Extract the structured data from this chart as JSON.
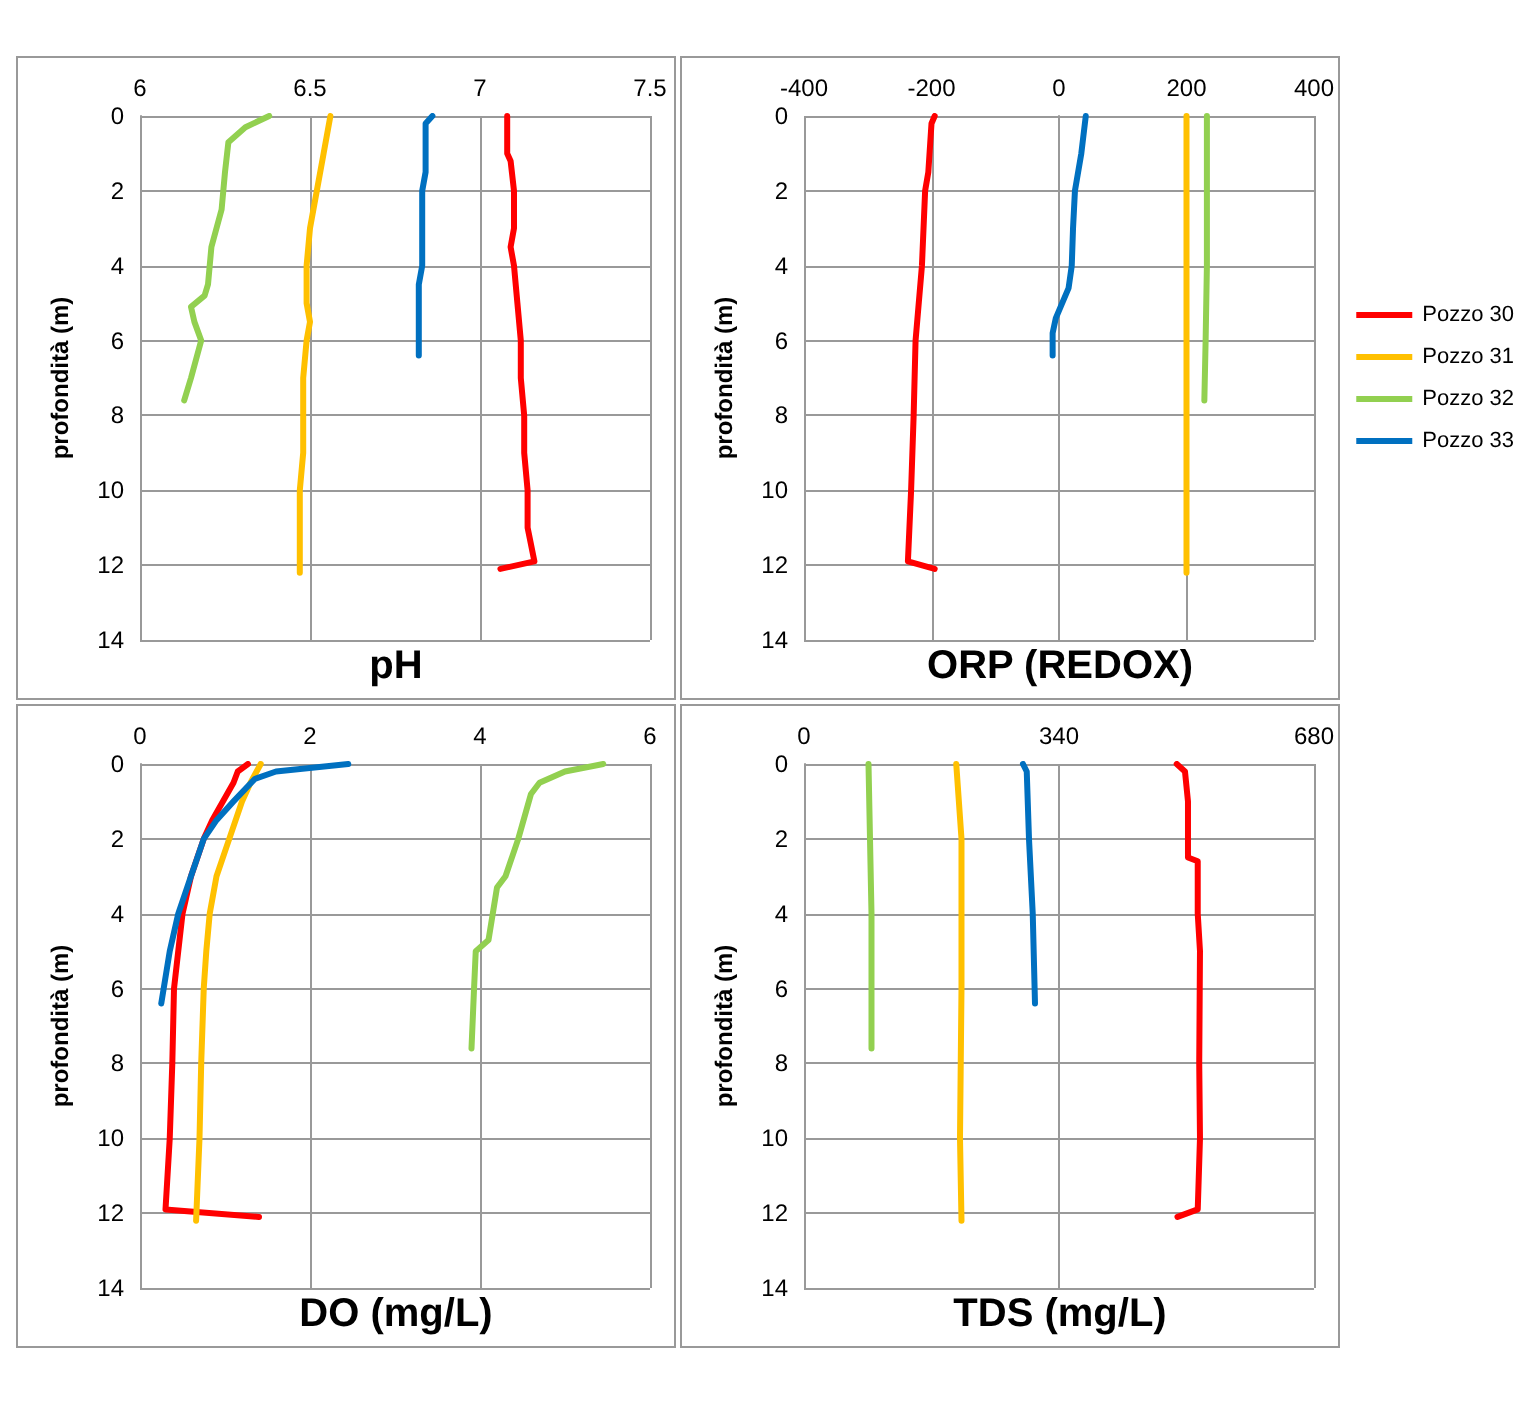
{
  "chart_data": [
    {
      "type": "line",
      "xlabel": "pH",
      "ylabel": "profondità (m)",
      "xlim": [
        6,
        7.5
      ],
      "xticks": [
        6,
        6.5,
        7,
        7.5
      ],
      "ylim": [
        14,
        0
      ],
      "yticks": [
        0,
        2,
        4,
        6,
        8,
        10,
        12,
        14
      ],
      "grid": true,
      "marker": "none",
      "series": [
        {
          "color": "#ff0000",
          "x": [
            7.08,
            7.08,
            7.09,
            7.1,
            7.1,
            7.09,
            7.1,
            7.11,
            7.12,
            7.12,
            7.13,
            7.13,
            7.14,
            7.14,
            7.16,
            7.06
          ],
          "values": [
            0,
            1,
            1.2,
            2,
            3,
            3.5,
            4,
            5,
            6,
            7,
            8,
            9,
            10,
            11,
            11.9,
            12.1
          ]
        },
        {
          "color": "#ffc000",
          "x": [
            6.56,
            6.54,
            6.52,
            6.5,
            6.49,
            6.49,
            6.5,
            6.49,
            6.48,
            6.48,
            6.48,
            6.47,
            6.47,
            6.47
          ],
          "values": [
            0,
            1,
            2,
            3,
            4,
            5,
            5.5,
            6,
            7,
            8,
            9,
            10,
            11,
            12.2
          ]
        },
        {
          "color": "#92d050",
          "x": [
            6.38,
            6.31,
            6.26,
            6.25,
            6.24,
            6.21,
            6.2,
            6.19,
            6.15,
            6.16,
            6.18,
            6.15,
            6.13
          ],
          "values": [
            0,
            0.3,
            0.7,
            1.5,
            2.5,
            3.5,
            4.5,
            4.8,
            5.1,
            5.5,
            6,
            7,
            7.6
          ]
        },
        {
          "color": "#0070c0",
          "x": [
            6.86,
            6.84,
            6.84,
            6.83,
            6.83,
            6.82,
            6.82
          ],
          "values": [
            0,
            0.2,
            1.5,
            2,
            4,
            4.5,
            6.4
          ]
        }
      ]
    },
    {
      "type": "line",
      "xlabel": "ORP (REDOX)",
      "ylabel": "profondità (m)",
      "xlim": [
        -400,
        400
      ],
      "xticks": [
        -400,
        -200,
        0,
        200,
        400
      ],
      "ylim": [
        14,
        0
      ],
      "yticks": [
        0,
        2,
        4,
        6,
        8,
        10,
        12,
        14
      ],
      "grid": true,
      "marker": "none",
      "legend": "right",
      "series": [
        {
          "name": "Pozzo 30",
          "color": "#ff0000",
          "x": [
            -195,
            -200,
            -205,
            -210,
            -215,
            -225,
            -228,
            -232,
            -237,
            -195
          ],
          "values": [
            0,
            0.2,
            1.5,
            2,
            4,
            6,
            8,
            10,
            11.9,
            12.1
          ]
        },
        {
          "name": "Pozzo 31",
          "color": "#ffc000",
          "x": [
            200,
            200
          ],
          "values": [
            0,
            12.2
          ]
        },
        {
          "name": "Pozzo 32",
          "color": "#92d050",
          "x": [
            232,
            232,
            230,
            228
          ],
          "values": [
            0,
            4,
            6,
            7.6
          ]
        },
        {
          "name": "Pozzo 33",
          "color": "#0070c0",
          "x": [
            42,
            35,
            25,
            22,
            20,
            15,
            5,
            -5,
            -10,
            -10
          ],
          "values": [
            0,
            1,
            2,
            3,
            4,
            4.6,
            5,
            5.4,
            5.8,
            6.4
          ]
        }
      ]
    },
    {
      "type": "line",
      "xlabel": "DO (mg/L)",
      "ylabel": "profondità (m)",
      "xlim": [
        0,
        6
      ],
      "xticks": [
        0,
        2,
        4,
        6
      ],
      "ylim": [
        14,
        0
      ],
      "yticks": [
        0,
        2,
        4,
        6,
        8,
        10,
        12,
        14
      ],
      "grid": true,
      "marker": "none",
      "series": [
        {
          "color": "#ff0000",
          "x": [
            1.27,
            1.15,
            1.1,
            0.95,
            0.85,
            0.75,
            0.6,
            0.5,
            0.45,
            0.4,
            0.38,
            0.35,
            0.3,
            1.4
          ],
          "values": [
            0,
            0.2,
            0.5,
            1.1,
            1.5,
            2,
            3,
            4,
            5,
            6,
            8,
            10,
            11.9,
            12.1
          ]
        },
        {
          "color": "#ffc000",
          "x": [
            1.42,
            1.3,
            1.2,
            1.05,
            0.9,
            0.82,
            0.78,
            0.75,
            0.72,
            0.7,
            0.66
          ],
          "values": [
            0,
            0.5,
            1,
            2,
            3,
            4,
            5,
            6,
            8,
            10,
            12.2
          ]
        },
        {
          "color": "#92d050",
          "x": [
            5.45,
            5.0,
            4.7,
            4.6,
            4.45,
            4.3,
            4.2,
            4.15,
            4.1,
            3.95,
            3.93,
            3.9
          ],
          "values": [
            0,
            0.2,
            0.5,
            0.8,
            2,
            3,
            3.3,
            4,
            4.7,
            5,
            6,
            7.6
          ]
        },
        {
          "color": "#0070c0",
          "x": [
            2.45,
            1.6,
            1.35,
            1.1,
            0.9,
            0.75,
            0.6,
            0.45,
            0.35,
            0.25
          ],
          "values": [
            0,
            0.2,
            0.4,
            1,
            1.5,
            2,
            3,
            4,
            5,
            6.4
          ]
        }
      ]
    },
    {
      "type": "line",
      "xlabel": "TDS (mg/L)",
      "ylabel": "profondità (m)",
      "xlim": [
        0,
        680
      ],
      "xticks": [
        0,
        340,
        680
      ],
      "ylim": [
        14,
        0
      ],
      "yticks": [
        0,
        2,
        4,
        6,
        8,
        10,
        12,
        14
      ],
      "grid": true,
      "marker": "none",
      "series": [
        {
          "color": "#ff0000",
          "x": [
            497,
            508,
            512,
            512,
            525,
            525,
            528,
            527,
            528,
            525,
            498
          ],
          "values": [
            0,
            0.2,
            1,
            2.5,
            2.6,
            4,
            5,
            8,
            10,
            11.9,
            12.1
          ]
        },
        {
          "color": "#ffc000",
          "x": [
            203,
            210,
            210,
            208,
            210
          ],
          "values": [
            0,
            2,
            6,
            10,
            12.2
          ]
        },
        {
          "color": "#92d050",
          "x": [
            86,
            90,
            90
          ],
          "values": [
            0,
            4,
            7.6
          ]
        },
        {
          "color": "#0070c0",
          "x": [
            292,
            297,
            300,
            305,
            308
          ],
          "values": [
            0,
            0.2,
            2,
            4,
            6.4
          ]
        }
      ]
    }
  ]
}
